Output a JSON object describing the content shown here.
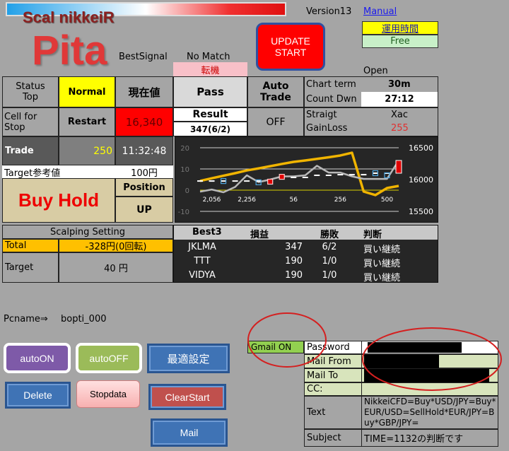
{
  "header": {
    "logo_top": "Scal nikkeiR",
    "logo_main": "Pita",
    "version": "Version13",
    "manual_link": "Manual",
    "best_signal_label": "BestSignal",
    "best_signal_value": "No Match",
    "signal_tag": "転機",
    "update_button": [
      "UPDATE",
      "START"
    ],
    "hours_label": "運用時間",
    "hours_value": "Free",
    "market_state": "Open"
  },
  "grid": {
    "status_label": [
      "Status",
      "Top"
    ],
    "status_value": "Normal",
    "price_label": "現在値",
    "pass": "Pass",
    "auto_trade_label": [
      "Auto",
      "Trade"
    ],
    "chart_term_label": "Chart term",
    "chart_term_value": "30m",
    "count_down_label": "Count Dwn",
    "count_down_value": "27:12",
    "cell_stop_label": [
      "Cell for",
      "Stop"
    ],
    "cell_stop_value": "Restart",
    "price_value": "16,340",
    "result_label": "Result",
    "result_value": "347(6/2)",
    "auto_trade_value": "OFF",
    "straight_label": "Straigt",
    "straight_value": "Xac",
    "gainloss_label": "GainLoss",
    "gainloss_value": "255",
    "trade_label": "Trade",
    "trade_value": "250",
    "time": "11:32:48",
    "target_ref_label": "Target参考値",
    "target_ref_value": "100円",
    "action": "Buy Hold",
    "position_label": "Position",
    "position_value": "UP"
  },
  "scalping": {
    "title": "Scalping  Setting",
    "total_label": "Total",
    "total_value": "-328円(0回転)",
    "target_label": "Target",
    "target_value": "40 円"
  },
  "best3": {
    "headers": [
      "Best3",
      "損益",
      "勝敗",
      "判断"
    ],
    "rows": [
      [
        "JKLMA",
        "347",
        "6/2",
        "買い継続"
      ],
      [
        "TTT",
        "190",
        "1/0",
        "買い継続"
      ],
      [
        "VIDYA",
        "190",
        "1/0",
        "買い継続"
      ]
    ]
  },
  "pcname": {
    "label": "Pcname⇒",
    "value": "bopti_000"
  },
  "buttons": {
    "auto_on": "autoON",
    "auto_off": "autoOFF",
    "optimize": "最適設定",
    "delete": "Delete",
    "stopdata": "Stopdata",
    "clear_start": "ClearStart",
    "mail": "Mail"
  },
  "mail": {
    "gmail": "Gmail ON",
    "password_label": "Password",
    "from_label": "Mail From",
    "to_label": "Mail To",
    "cc_label": "CC:",
    "text_label": "Text",
    "text_value": "NikkeiCFD=Buy*USD/JPY=Buy*EUR/USD=SellHold*EUR/JPY=Buy*GBP/JPY=",
    "subject_label": "Subject",
    "subject_value": "TIME=1132の判断です"
  },
  "colors": {
    "yellow": "#ffff00",
    "red": "#ff0000",
    "orange": "#ffc000",
    "tan": "#d8cca4",
    "mail_green": "#d8e4bc",
    "gmail_green": "#92d050",
    "chart_bg": "#262626",
    "annotation": "#d42020"
  },
  "chart_data": {
    "type": "line",
    "grid": true,
    "categories": [
      "",
      "2,056",
      "",
      "",
      "2,256",
      "",
      "",
      "",
      "56",
      "",
      "",
      "",
      "256",
      "",
      "",
      "",
      "500",
      ""
    ],
    "y_left": {
      "ticks": [
        "20",
        "10",
        "0",
        "-10"
      ],
      "range": [
        -10,
        20
      ]
    },
    "y_right": {
      "ticks": [
        "16500",
        "16000",
        "15500"
      ],
      "range": [
        15500,
        16500
      ]
    },
    "series": [
      {
        "axis": "right",
        "color": "#f0b400",
        "values": [
          15978,
          16020,
          16060,
          16100,
          16144,
          16175,
          16210,
          16245,
          16278,
          16300,
          16325,
          16350,
          16378,
          16422,
          15811,
          15756,
          15867,
          15900
        ]
      },
      {
        "axis": "left",
        "color": "#b8b8b8",
        "values": [
          -0.7,
          0.3,
          -1,
          1.5,
          7,
          3.8,
          5,
          6.5,
          6.5,
          7,
          11.5,
          8.3,
          8.3,
          6.5,
          5.3,
          5.3,
          5.3,
          14
        ]
      },
      {
        "axis": "left",
        "marker": "dash",
        "color": "#ffffff",
        "values": [
          4.3,
          4.3,
          4.3,
          4.3,
          4.3,
          4.3,
          4.3,
          6,
          6,
          6,
          7,
          7,
          7.3,
          7.3,
          7.3,
          8,
          8,
          null
        ]
      }
    ],
    "signals": [
      {
        "x": 2,
        "y": 4.3,
        "kind": "blue"
      },
      {
        "x": 5,
        "y": 3.7,
        "kind": "blue"
      },
      {
        "x": 6,
        "y": 4,
        "kind": "red"
      },
      {
        "x": 7,
        "y": 6.3,
        "kind": "red"
      },
      {
        "x": 15,
        "y": 8,
        "kind": "blue"
      },
      {
        "x": 16,
        "y": 7,
        "kind": "blue"
      },
      {
        "x": 17,
        "y": [
          8,
          14
        ],
        "kind": "red"
      }
    ],
    "zero_line": 0
  }
}
